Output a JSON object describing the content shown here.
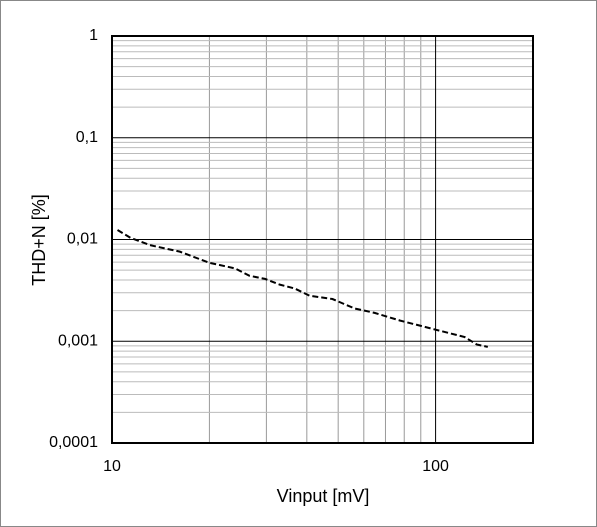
{
  "chart_data": {
    "type": "line",
    "x_label": "Vinput [mV]",
    "y_label": "THD+N [%]",
    "x": [
      10.4,
      11.4,
      13.1,
      16.2,
      20,
      24,
      26.6,
      29.7,
      33,
      36.7,
      40.8,
      48,
      56.2,
      64.8,
      77.5,
      100,
      123,
      134,
      145
    ],
    "series": [
      {
        "color": "#000000",
        "values": [
          0.0124,
          0.0104,
          0.0088,
          0.0076,
          0.0059,
          0.0052,
          0.0044,
          0.0041,
          0.0036,
          0.0033,
          0.0028,
          0.0026,
          0.0021,
          0.0019,
          0.0016,
          0.0013,
          0.0011,
          0.00093,
          0.00088
        ]
      }
    ],
    "xlim": [
      10,
      200
    ],
    "ylim": [
      0.0001,
      1
    ],
    "xticks": [
      10,
      100
    ],
    "yticks": [
      {
        "value": 0.0001,
        "label": "0,0001"
      },
      {
        "value": 0.001,
        "label": "0,001"
      },
      {
        "value": 0.01,
        "label": "0,01"
      },
      {
        "value": 0.1,
        "label": "0,1"
      },
      1
    ],
    "xscale": "log",
    "yscale": "log",
    "grid": true,
    "minor_grid": true,
    "dashed": true
  }
}
